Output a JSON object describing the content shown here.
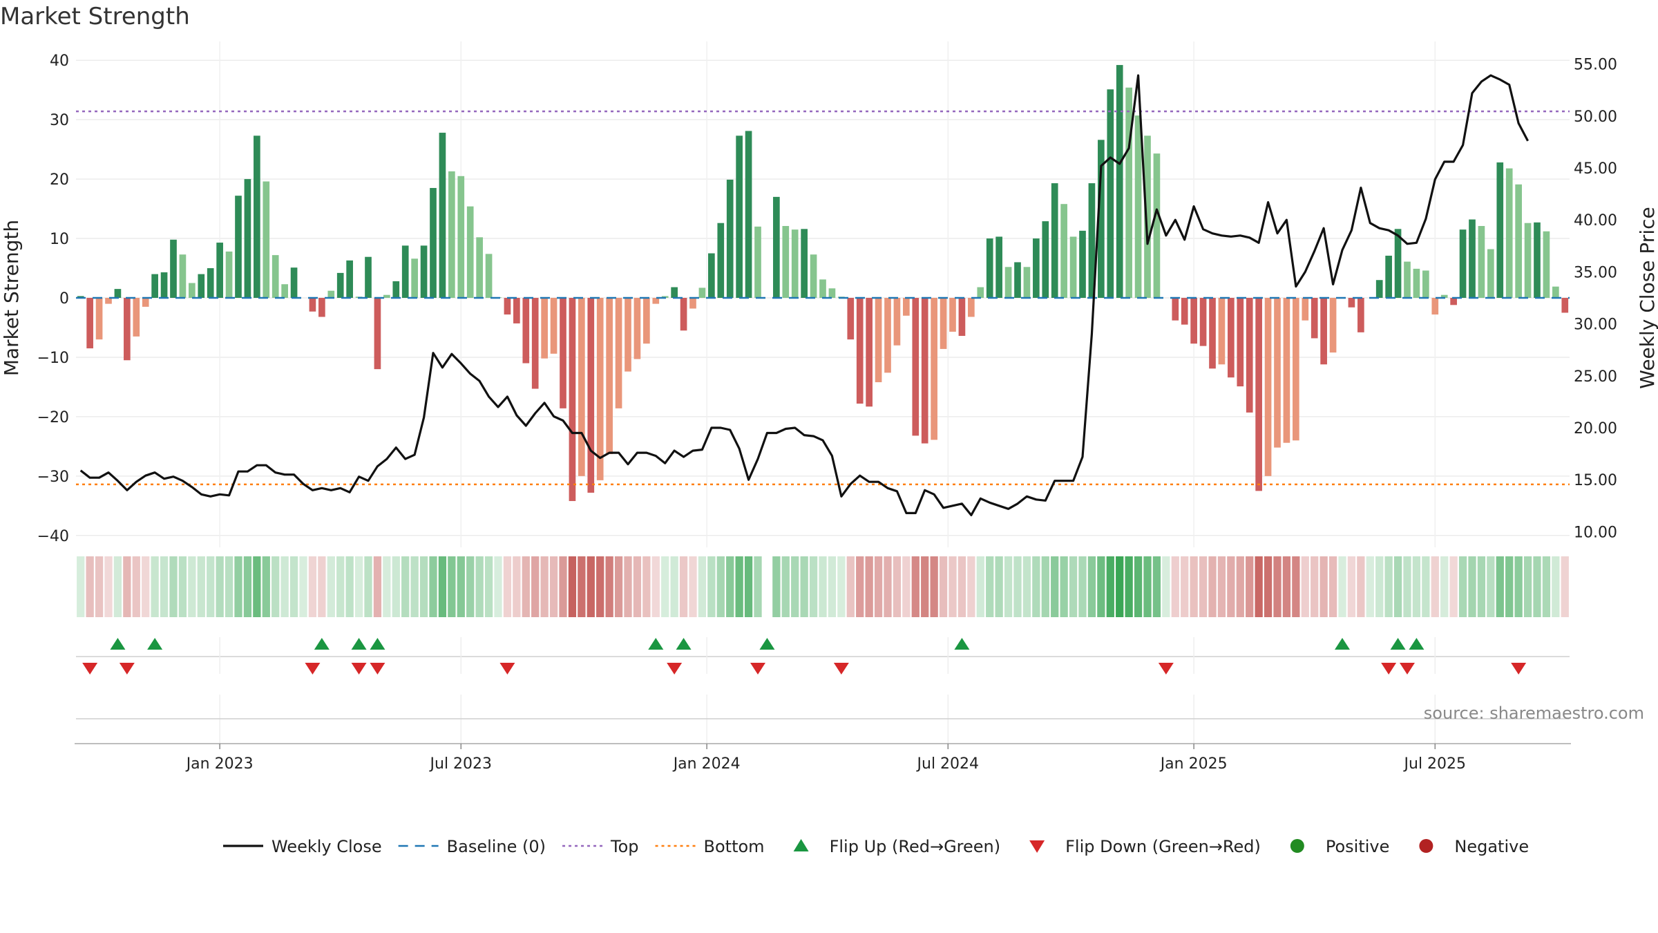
{
  "title": "Market Strength",
  "source": "source: sharemaestro.com",
  "colors": {
    "pos_dark": "#2e8b57",
    "pos_light": "#86c58e",
    "neg_dark": "#cd5c5c",
    "neg_light": "#e9967a",
    "close": "#111111",
    "baseline": "#1f77b4",
    "top": "#9467bd",
    "bottom": "#ff7f0e",
    "flip_up": "#1a9641",
    "flip_down": "#d62728",
    "positive": "#228b22",
    "negative": "#b22222"
  },
  "chart_data": {
    "type": "bar",
    "title": "Market Strength",
    "ylabel": "Market Strength",
    "y2label": "Weekly Close Price",
    "ylim": [
      -42,
      42
    ],
    "y2lim": [
      8.5,
      56.5
    ],
    "yticks": [
      40,
      30,
      20,
      10,
      0,
      -10,
      -20,
      -30,
      -40
    ],
    "yticklabels": [
      "40",
      "30",
      "20",
      "10",
      "0",
      "−10",
      "−20",
      "−30",
      "−40"
    ],
    "y2ticks": [
      55,
      50,
      45,
      40,
      35,
      30,
      25,
      20,
      15,
      10
    ],
    "y2ticklabels": [
      "55.00",
      "50.00",
      "45.00",
      "40.00",
      "35.00",
      "30.00",
      "25.00",
      "20.00",
      "15.00",
      "10.00"
    ],
    "xticks": [
      {
        "label": "Jan 2023",
        "week": 15
      },
      {
        "label": "Jul 2023",
        "week": 41
      },
      {
        "label": "Jan 2024",
        "week": 67.5
      },
      {
        "label": "Jul 2024",
        "week": 93.5
      },
      {
        "label": "Jan 2025",
        "week": 120
      },
      {
        "label": "Jul 2025",
        "week": 146
      }
    ],
    "top_line": 31.4,
    "bottom_line": -31.4,
    "grid": true,
    "legend_placement": "bottom",
    "strength": [
      0.3,
      -8.5,
      -7,
      -1,
      1.5,
      -10.5,
      -6.5,
      -1.5,
      4,
      4.3,
      9.8,
      7.3,
      2.5,
      4,
      5,
      9.3,
      7.8,
      17.2,
      20,
      27.3,
      19.6,
      7.2,
      2.3,
      5.1,
      0,
      -2.3,
      -3.2,
      1.2,
      4.2,
      6.3,
      0.2,
      6.9,
      -12,
      0.5,
      2.8,
      8.8,
      6.6,
      8.8,
      18.5,
      27.8,
      21.3,
      20.5,
      15.4,
      10.2,
      7.4,
      0.1,
      -2.8,
      -4.3,
      -11,
      -15.3,
      -10.2,
      -9.4,
      -18.6,
      -34.2,
      -30,
      -32.8,
      -30.7,
      -26.3,
      -18.6,
      -12.4,
      -10.3,
      -7.7,
      -1,
      0.3,
      1.8,
      -5.5,
      -1.8,
      1.7,
      7.5,
      12.6,
      19.9,
      27.3,
      28.1,
      12,
      0,
      17,
      12.1,
      11.5,
      11.6,
      7.3,
      3.1,
      1.6,
      0.2,
      -7,
      -17.8,
      -18.3,
      -14.2,
      -12.6,
      -8,
      -3,
      -23.2,
      -24.5,
      -23.9,
      -8.6,
      -5.7,
      -6.4,
      -3.2,
      1.8,
      10,
      10.3,
      5.2,
      6,
      5.2,
      10,
      12.9,
      19.3,
      15.8,
      10.3,
      11.3,
      19.3,
      26.6,
      35.1,
      39.2,
      35.4,
      30.7,
      27.3,
      24.3,
      0,
      -3.8,
      -4.5,
      -7.7,
      -8.1,
      -11.9,
      -11.2,
      -13.4,
      -14.9,
      -19.3,
      -32.5,
      -30,
      -25.2,
      -24.4,
      -24,
      -3.8,
      -6.8,
      -11.2,
      -9.2,
      0,
      -1.6,
      -5.8,
      0,
      3,
      7.1,
      11.6,
      6.1,
      4.9,
      4.6,
      -2.8,
      0.5,
      -1.2,
      11.5,
      13.2,
      12.1,
      8.2,
      22.8,
      21.8,
      19.1,
      12.6,
      12.7,
      11.2,
      1.9,
      -2.5
    ],
    "close": [
      15.9,
      15.2,
      15.2,
      15.7,
      14.9,
      14,
      14.8,
      15.4,
      15.7,
      15.1,
      15.3,
      14.9,
      14.3,
      13.6,
      13.4,
      13.6,
      13.5,
      15.8,
      15.8,
      16.4,
      16.4,
      15.7,
      15.5,
      15.5,
      14.6,
      14,
      14.2,
      14,
      14.2,
      13.8,
      15.3,
      14.9,
      16.3,
      17,
      18.1,
      17,
      17.4,
      21,
      27.2,
      25.8,
      27.1,
      26.2,
      25.2,
      24.5,
      23,
      22,
      23,
      21.2,
      20.2,
      21.4,
      22.4,
      21.1,
      20.7,
      19.5,
      19.5,
      17.8,
      17.1,
      17.6,
      17.6,
      16.5,
      17.6,
      17.6,
      17.3,
      16.6,
      17.8,
      17.2,
      17.8,
      17.9,
      20,
      20,
      19.8,
      18,
      15,
      17,
      19.5,
      19.5,
      19.9,
      20,
      19.3,
      19.2,
      18.8,
      17.3,
      13.4,
      14.6,
      15.4,
      14.8,
      14.8,
      14.2,
      13.9,
      11.8,
      11.8,
      14,
      13.6,
      12.3,
      12.5,
      12.7,
      11.6,
      13.2,
      12.8,
      12.5,
      12.2,
      12.7,
      13.4,
      13.1,
      13,
      14.9,
      14.9,
      14.9,
      17.2,
      29,
      45.2,
      46,
      45.4,
      46.9,
      53.9,
      37.7,
      41,
      38.5,
      40,
      38.1,
      41.3,
      39.1,
      38.7,
      38.5,
      38.4,
      38.5,
      38.3,
      37.8,
      41.7,
      38.7,
      40,
      33.6,
      35,
      37,
      39.2,
      33.8,
      37.1,
      39,
      43.1,
      39.7,
      39.2,
      39,
      38.5,
      37.7,
      37.8,
      40.1,
      43.9,
      45.6,
      45.6,
      47.2,
      52.2,
      53.3,
      53.9,
      53.5,
      53,
      49.3,
      47.6
    ],
    "flip_up": [
      4,
      8,
      26,
      30,
      32,
      62,
      65,
      74,
      95,
      136,
      142,
      144
    ],
    "flip_down": [
      1,
      5,
      25,
      30,
      32,
      46,
      64,
      73,
      82,
      117,
      141,
      143,
      155
    ]
  },
  "legend": [
    {
      "kind": "line-solid",
      "label": "Weekly Close"
    },
    {
      "kind": "line-dash",
      "label": "Baseline (0)"
    },
    {
      "kind": "line-dot-top",
      "label": "Top"
    },
    {
      "kind": "line-dot-bottom",
      "label": "Bottom"
    },
    {
      "kind": "tri-up",
      "label": "Flip Up (Red→Green)"
    },
    {
      "kind": "tri-down",
      "label": "Flip Down (Green→Red)"
    },
    {
      "kind": "dot-pos",
      "label": "Positive"
    },
    {
      "kind": "dot-neg",
      "label": "Negative"
    }
  ]
}
